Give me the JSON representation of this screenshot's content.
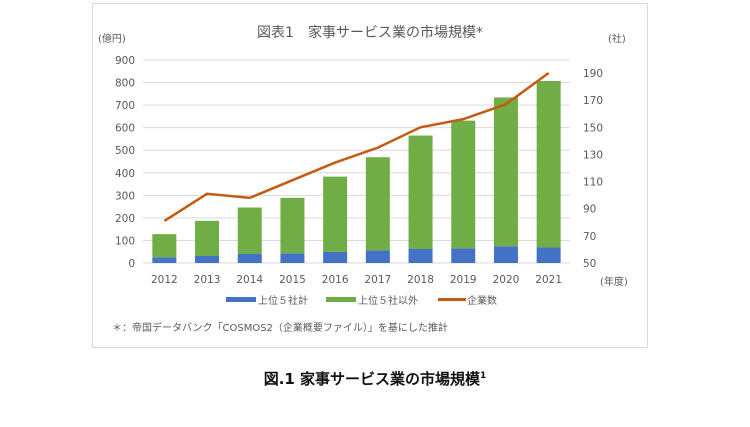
{
  "chart_data": {
    "type": "bar",
    "title": "図表1　家事サービス業の市場規模*",
    "ylabel": "(億円)",
    "y2label": "(社)",
    "xlabel": "(年度)",
    "ylim": [
      0,
      900
    ],
    "y2lim": [
      50,
      200
    ],
    "yticks": [
      0,
      100,
      200,
      300,
      400,
      500,
      600,
      700,
      800,
      900
    ],
    "y2ticks": [
      50,
      70,
      90,
      110,
      130,
      150,
      170,
      190
    ],
    "categories": [
      "2012",
      "2013",
      "2014",
      "2015",
      "2016",
      "2017",
      "2018",
      "2019",
      "2020",
      "2021"
    ],
    "series": [
      {
        "name": "上位５社計",
        "type": "bar",
        "stack": true,
        "color": "#4472c4",
        "values": [
          25,
          31,
          40,
          43,
          49,
          56,
          62,
          65,
          74,
          69
        ]
      },
      {
        "name": "上位５社以外",
        "type": "bar",
        "stack": true,
        "color": "#70ad47",
        "values": [
          103,
          156,
          206,
          246,
          334,
          413,
          503,
          566,
          660,
          738
        ]
      },
      {
        "name": "企業数",
        "type": "line",
        "axis": "right",
        "color": "#c55a11",
        "values": [
          81,
          101,
          98,
          111,
          124,
          135,
          150,
          156,
          167,
          190
        ]
      }
    ],
    "grid": true,
    "legend": "bottom",
    "note": "＊：帝国データバンク「COSMOS2（企業概要ファイル）」を基にした推計"
  },
  "caption": "図.1 家事サービス業の市場規模",
  "caption_sup": "1"
}
